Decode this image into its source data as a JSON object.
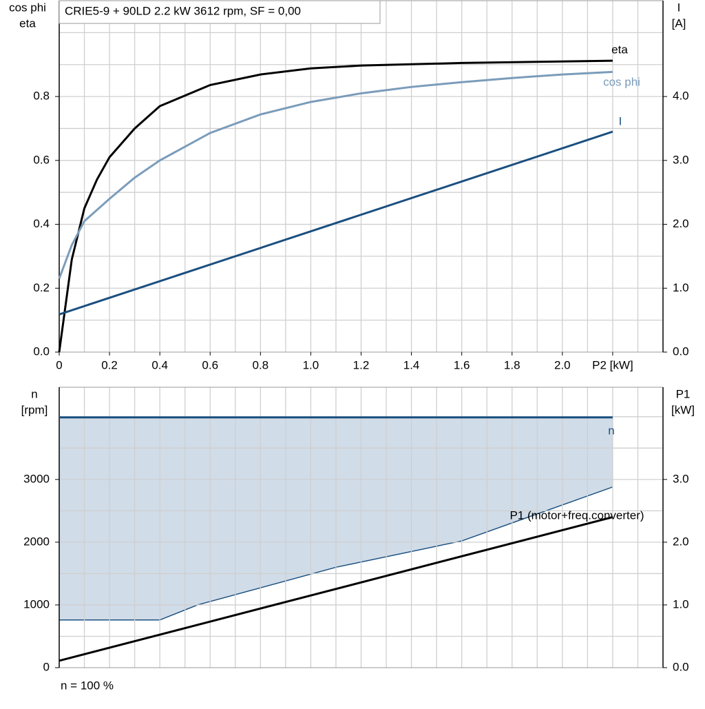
{
  "chart_data": [
    {
      "type": "line",
      "title": "CRIE5-9 + 90LD   2.2 kW   3612 rpm, SF = 0,00",
      "ylabel": [
        "cos phi",
        "eta"
      ],
      "y2label": [
        "I",
        "[A]"
      ],
      "xlim": [
        0,
        2.4
      ],
      "xticks": [
        0,
        {
          "value": 0.2,
          "label": "0.2"
        },
        {
          "value": 0.4,
          "label": "0.4"
        },
        {
          "value": 0.6,
          "label": "0.6"
        },
        {
          "value": 0.8,
          "label": "0.8"
        },
        {
          "value": 1.0,
          "label": "1.0"
        },
        {
          "value": 1.2,
          "label": "1.2"
        },
        {
          "value": 1.4,
          "label": "1.4"
        },
        {
          "value": 1.6,
          "label": "1.6"
        },
        {
          "value": 1.8,
          "label": "1.8"
        },
        {
          "value": 2.0,
          "label": "2.0"
        },
        {
          "value": 2.2,
          "label": "P2 [kW]"
        }
      ],
      "grid_x": [
        0.1,
        0.2,
        0.3,
        0.4,
        0.5,
        0.6,
        0.7,
        0.8,
        0.9,
        1.0,
        1.1,
        1.2,
        1.3,
        1.4,
        1.5,
        1.6,
        1.7,
        1.8,
        1.9,
        2.0,
        2.1,
        2.2,
        2.3
      ],
      "ylim": [
        0,
        1.1
      ],
      "yticks": [
        {
          "value": 0,
          "label": "0.0"
        },
        0.2,
        0.4,
        0.6,
        0.8
      ],
      "grid_y": [
        0.1,
        0.2,
        0.3,
        0.4,
        0.5,
        0.6,
        0.7,
        0.8,
        0.9,
        1.0
      ],
      "y2lim": [
        0,
        5.5
      ],
      "y2ticks": [
        {
          "value": 0,
          "label": "0.0"
        },
        {
          "value": 1,
          "label": "1.0"
        },
        {
          "value": 2,
          "label": "2.0"
        },
        {
          "value": 3,
          "label": "3.0"
        },
        {
          "value": 4,
          "label": "4.0"
        }
      ],
      "series": [
        {
          "name": "eta",
          "color": "#000000",
          "x": [
            0,
            0.05,
            0.1,
            0.15,
            0.2,
            0.3,
            0.4,
            0.6,
            0.8,
            1.0,
            1.2,
            1.6,
            2.2
          ],
          "values": [
            0,
            0.29,
            0.45,
            0.54,
            0.61,
            0.7,
            0.77,
            0.836,
            0.869,
            0.888,
            0.897,
            0.905,
            0.912
          ]
        },
        {
          "name": "cos phi",
          "color": "#7a9cba",
          "x": [
            0,
            0.05,
            0.1,
            0.2,
            0.3,
            0.4,
            0.6,
            0.8,
            1.0,
            1.2,
            1.4,
            1.6,
            1.8,
            2.0,
            2.2
          ],
          "values": [
            0.23,
            0.335,
            0.41,
            0.48,
            0.546,
            0.6,
            0.686,
            0.744,
            0.783,
            0.81,
            0.83,
            0.845,
            0.858,
            0.869,
            0.877
          ]
        },
        {
          "name": "I",
          "color": "#1a4f80",
          "axis": "y2",
          "x": [
            0,
            2.2
          ],
          "values": [
            0.59,
            3.45
          ]
        }
      ]
    },
    {
      "type": "line",
      "note": "n = 100 %",
      "ylabel": [
        "n",
        "[rpm]"
      ],
      "y2label": [
        "P1",
        "[kW]"
      ],
      "xlim": [
        0,
        2.4
      ],
      "grid_x": [
        0.1,
        0.2,
        0.3,
        0.4,
        0.5,
        0.6,
        0.7,
        0.8,
        0.9,
        1.0,
        1.1,
        1.2,
        1.3,
        1.4,
        1.5,
        1.6,
        1.7,
        1.8,
        1.9,
        2.0,
        2.1,
        2.2,
        2.3
      ],
      "ylim": [
        0,
        4470
      ],
      "yticks": [
        0,
        1000,
        2000,
        3000
      ],
      "grid_y": [
        500,
        1000,
        1500,
        2000,
        2500,
        3000,
        3500,
        4000
      ],
      "y2lim": [
        0,
        4.47
      ],
      "y2ticks": [
        {
          "value": 0,
          "label": "0.0"
        },
        {
          "value": 1,
          "label": "1.0"
        },
        {
          "value": 2,
          "label": "2.0"
        },
        {
          "value": 3,
          "label": "3.0"
        }
      ],
      "band": {
        "color": "#d0dce8",
        "x": [
          0,
          0.4,
          0.55,
          1.1,
          1.6,
          2.2
        ],
        "lower": [
          760,
          760,
          1000,
          1600,
          2020,
          2880
        ]
      },
      "series": [
        {
          "name": "n",
          "color": "#1a4f80",
          "x": [
            0,
            2.2
          ],
          "values": [
            3990,
            3990
          ]
        },
        {
          "name": "P1 (motor+freq.converter)",
          "color": "#000000",
          "axis": "y2",
          "x": [
            0,
            2.2
          ],
          "values": [
            0.11,
            2.4
          ]
        }
      ]
    }
  ]
}
